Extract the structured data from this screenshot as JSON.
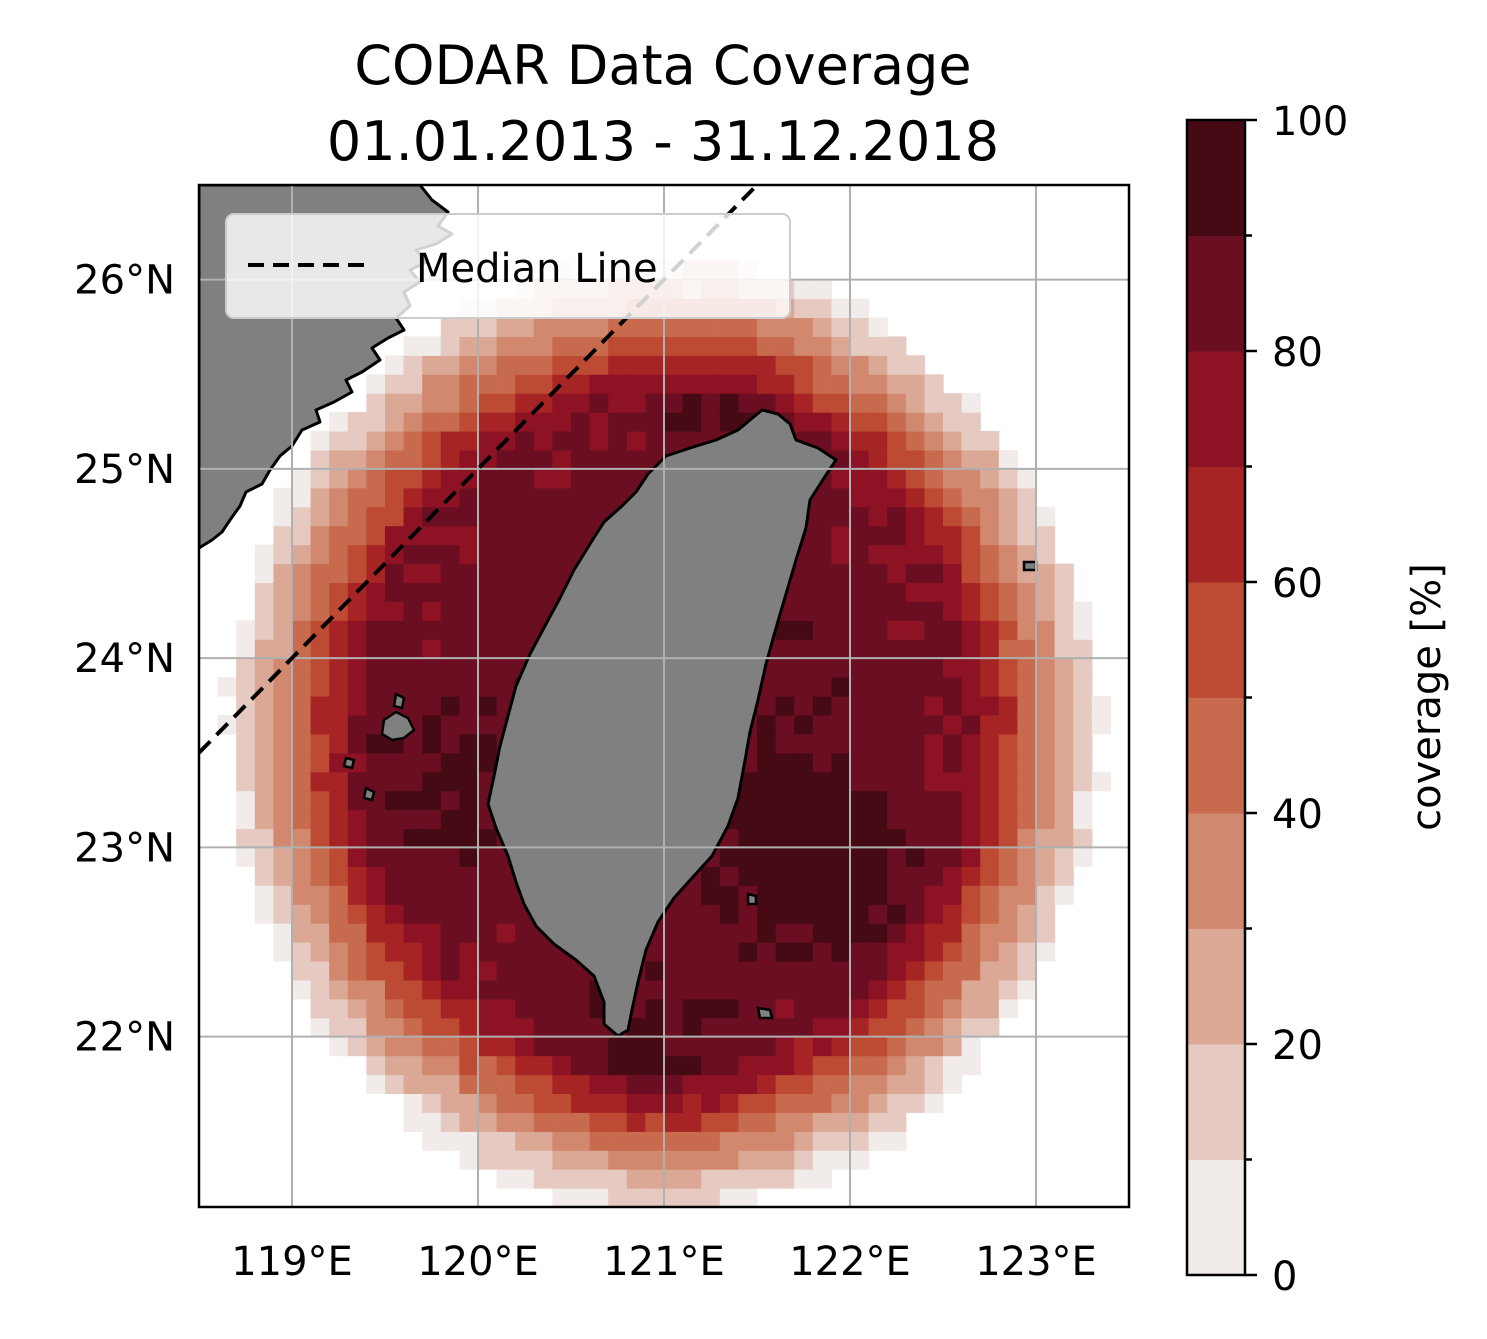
{
  "title": {
    "line1": "CODAR Data Coverage",
    "line2": "01.01.2013 - 31.12.2018"
  },
  "legend": {
    "label": "Median Line",
    "line_style": "dashed",
    "line_color": "#000000",
    "placement": "top-left"
  },
  "map": {
    "land_color": "#808080",
    "grid": true,
    "lon_range": [
      118.5,
      123.5
    ],
    "lat_range": [
      21.1,
      26.5
    ],
    "lon_ticks": [
      {
        "value": 119,
        "label": "119°E"
      },
      {
        "value": 120,
        "label": "120°E"
      },
      {
        "value": 121,
        "label": "121°E"
      },
      {
        "value": 122,
        "label": "122°E"
      },
      {
        "value": 123,
        "label": "123°E"
      }
    ],
    "lat_ticks": [
      {
        "value": 26,
        "label": "26°N"
      },
      {
        "value": 25,
        "label": "25°N"
      },
      {
        "value": 24,
        "label": "24°N"
      },
      {
        "value": 23,
        "label": "23°N"
      },
      {
        "value": 22,
        "label": "22°N"
      }
    ]
  },
  "colorbar": {
    "label": "coverage [%]",
    "range": [
      0,
      100
    ],
    "ticks": [
      {
        "value": 0,
        "label": "0"
      },
      {
        "value": 20,
        "label": "20"
      },
      {
        "value": 40,
        "label": "40"
      },
      {
        "value": 60,
        "label": "60"
      },
      {
        "value": 80,
        "label": "80"
      },
      {
        "value": 100,
        "label": "100"
      }
    ],
    "levels": [
      0,
      10,
      20,
      30,
      40,
      50,
      60,
      70,
      80,
      90,
      100
    ],
    "colors": [
      "#f1ebe9",
      "#e6c9c0",
      "#dba896",
      "#d2886e",
      "#c76a4d",
      "#bd4a32",
      "#a72424",
      "#8c1224",
      "#6b0e22",
      "#450a14"
    ]
  },
  "chart_data": {
    "type": "heatmap",
    "title": "CODAR Data Coverage\n01.01.2013 - 31.12.2018",
    "xlabel": "",
    "ylabel": "",
    "xlim": [
      118.5,
      123.5
    ],
    "ylim": [
      21.1,
      26.5
    ],
    "zlabel": "coverage [%]",
    "zlim": [
      0,
      100
    ],
    "grid": true,
    "legend_placement": "top-left",
    "field": {
      "description_of_shape": "concentric coverage rings around Taiwan; high near coast, decaying outward",
      "west_peak": {
        "lon": 119.7,
        "lat": 23.3,
        "coverage": 88
      },
      "east_peak": {
        "lon": 121.9,
        "lat": 22.9,
        "coverage": 95
      },
      "south_peak": {
        "lon": 120.95,
        "lat": 21.8,
        "coverage": 92
      },
      "north_peak": {
        "lon": 121.4,
        "lat": 25.45,
        "coverage": 90
      }
    },
    "series": [
      {
        "name": "Median Line",
        "x": [
          118.5,
          121.5
        ],
        "y": [
          23.5,
          26.5
        ]
      }
    ]
  }
}
